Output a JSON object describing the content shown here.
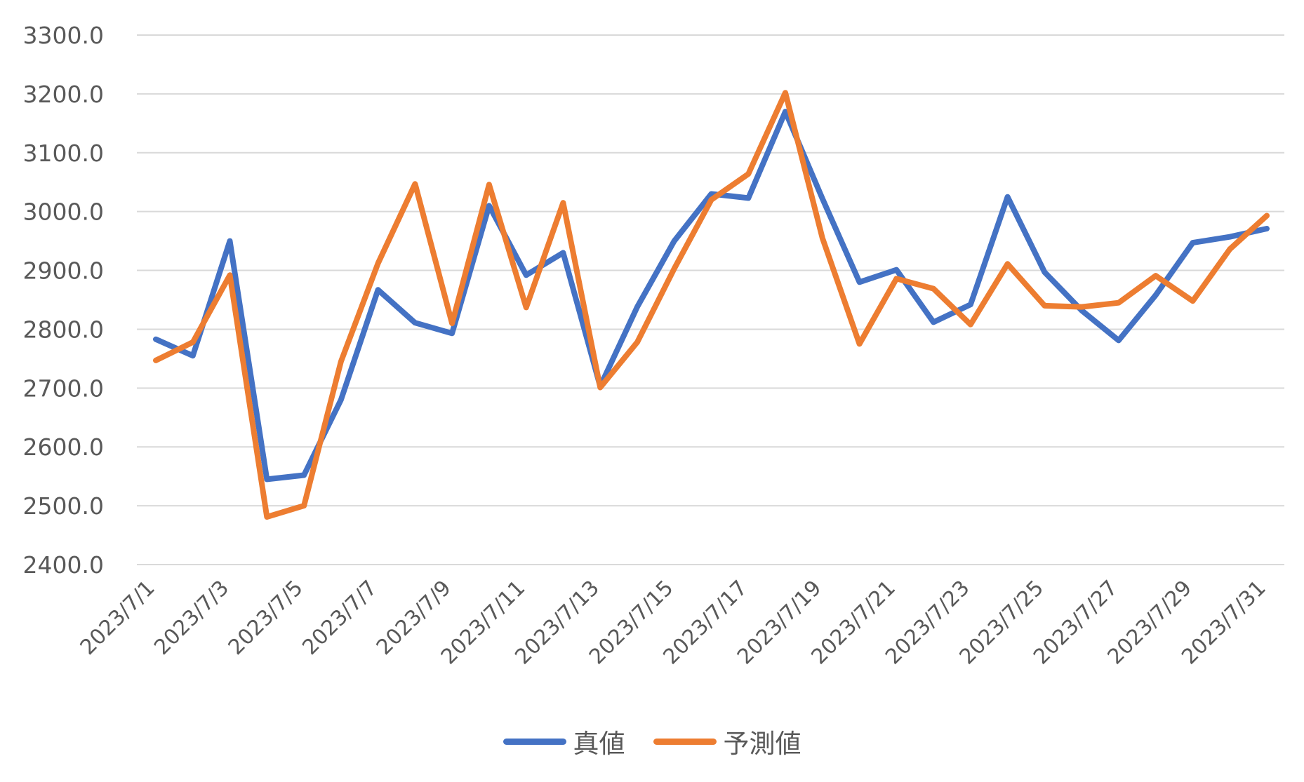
{
  "chart_data": {
    "type": "line",
    "title": "",
    "xlabel": "",
    "ylabel": "",
    "ylim": [
      2400,
      3300
    ],
    "ytick_step": 100,
    "y_tick_labels": [
      "2400.0",
      "2500.0",
      "2600.0",
      "2700.0",
      "2800.0",
      "2900.0",
      "3000.0",
      "3100.0",
      "3200.0",
      "3300.0"
    ],
    "grid": true,
    "legend_position": "bottom",
    "x": [
      "2023/7/1",
      "2023/7/2",
      "2023/7/3",
      "2023/7/4",
      "2023/7/5",
      "2023/7/6",
      "2023/7/7",
      "2023/7/8",
      "2023/7/9",
      "2023/7/10",
      "2023/7/11",
      "2023/7/12",
      "2023/7/13",
      "2023/7/14",
      "2023/7/15",
      "2023/7/16",
      "2023/7/17",
      "2023/7/18",
      "2023/7/19",
      "2023/7/20",
      "2023/7/21",
      "2023/7/22",
      "2023/7/23",
      "2023/7/24",
      "2023/7/25",
      "2023/7/26",
      "2023/7/27",
      "2023/7/28",
      "2023/7/29",
      "2023/7/30",
      "2023/7/31"
    ],
    "x_tick_labels": [
      "2023/7/1",
      "2023/7/3",
      "2023/7/5",
      "2023/7/7",
      "2023/7/9",
      "2023/7/11",
      "2023/7/13",
      "2023/7/15",
      "2023/7/17",
      "2023/7/19",
      "2023/7/21",
      "2023/7/23",
      "2023/7/25",
      "2023/7/27",
      "2023/7/29",
      "2023/7/31"
    ],
    "series": [
      {
        "name": "真値",
        "color": "#4472C4",
        "values": [
          2783,
          2755,
          2950,
          2545,
          2552,
          2680,
          2867,
          2811,
          2793,
          3010,
          2892,
          2930,
          2703,
          2838,
          2950,
          3030,
          3023,
          3170,
          3022,
          2880,
          2901,
          2812,
          2842,
          3025,
          2897,
          2832,
          2781,
          2858,
          2947,
          2957,
          2971
        ]
      },
      {
        "name": "予測値",
        "color": "#ED7D31",
        "values": [
          2747,
          2778,
          2892,
          2481,
          2500,
          2745,
          2912,
          3047,
          2810,
          3046,
          2837,
          3015,
          2701,
          2778,
          2903,
          3020,
          3064,
          3202,
          2955,
          2775,
          2886,
          2869,
          2808,
          2911,
          2840,
          2838,
          2845,
          2891,
          2848,
          2936,
          2993
        ]
      }
    ]
  }
}
